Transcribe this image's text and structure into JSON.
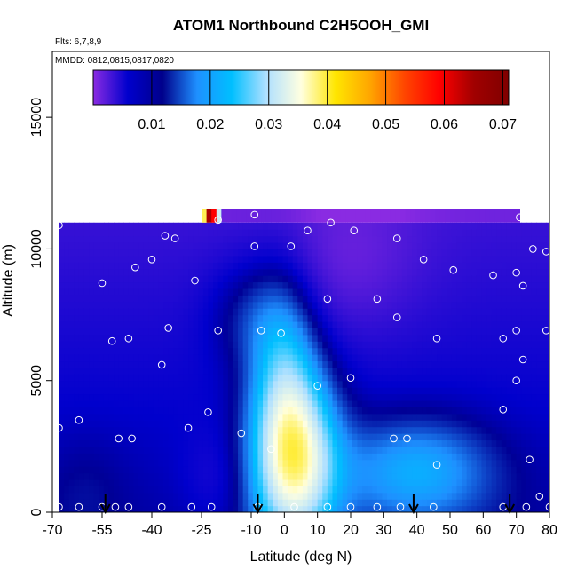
{
  "chart_data": {
    "type": "heatmap",
    "title": "ATOM1 Northbound C2H5OOH_GMI",
    "annotations": [
      "Flts: 6,7,8,9",
      "MMDD: 0812,0815,0817,0820"
    ],
    "xlabel": "Latitude (deg N)",
    "ylabel": "Altitude (m)",
    "xlim": [
      -70,
      80
    ],
    "ylim": [
      0,
      17500
    ],
    "x_ticks": [
      -70,
      -55,
      -40,
      -25,
      -10,
      0,
      10,
      20,
      30,
      40,
      50,
      60,
      70,
      80
    ],
    "x_tick_labels": [
      "-70",
      "-55",
      "-40",
      "-25",
      "-10",
      "0",
      "10",
      "20",
      "30",
      "40",
      "50",
      "60",
      "70",
      "80"
    ],
    "y_ticks": [
      0,
      5000,
      10000,
      15000
    ],
    "y_tick_labels": [
      "0",
      "5000",
      "10000",
      "15000"
    ],
    "colorbar": {
      "min": 0.0,
      "max": 0.071,
      "ticks": [
        0.01,
        0.02,
        0.03,
        0.04,
        0.05,
        0.06,
        0.07
      ],
      "tick_labels": [
        "0.01",
        "0.02",
        "0.03",
        "0.04",
        "0.05",
        "0.06",
        "0.07"
      ],
      "colors": [
        "#8a2be2",
        "#0000cd",
        "#00008b",
        "#1e90ff",
        "#00bfff",
        "#b0e0ff",
        "#ffffe0",
        "#ffe600",
        "#ffa500",
        "#ff4500",
        "#ff0000",
        "#a00000",
        "#800000"
      ]
    },
    "surface_arrows_lat": [
      -54,
      -8,
      39,
      68
    ],
    "sample_points": [
      {
        "lat": -68,
        "alt": 200
      },
      {
        "lat": -62,
        "alt": 200
      },
      {
        "lat": -55,
        "alt": 200
      },
      {
        "lat": -51,
        "alt": 200
      },
      {
        "lat": -47,
        "alt": 200
      },
      {
        "lat": -37,
        "alt": 200
      },
      {
        "lat": -28,
        "alt": 200
      },
      {
        "lat": -22,
        "alt": 200
      },
      {
        "lat": -8,
        "alt": 200
      },
      {
        "lat": 3,
        "alt": 200
      },
      {
        "lat": 13,
        "alt": 200
      },
      {
        "lat": 20,
        "alt": 200
      },
      {
        "lat": 28,
        "alt": 200
      },
      {
        "lat": 35,
        "alt": 200
      },
      {
        "lat": 45,
        "alt": 200
      },
      {
        "lat": 66,
        "alt": 200
      },
      {
        "lat": 73,
        "alt": 200
      },
      {
        "lat": 80,
        "alt": 200
      },
      {
        "lat": -68,
        "alt": 3200
      },
      {
        "lat": -62,
        "alt": 3500
      },
      {
        "lat": -50,
        "alt": 2800
      },
      {
        "lat": -46,
        "alt": 2800
      },
      {
        "lat": -29,
        "alt": 3200
      },
      {
        "lat": -13,
        "alt": 3000
      },
      {
        "lat": -4,
        "alt": 2400
      },
      {
        "lat": 33,
        "alt": 2800
      },
      {
        "lat": 37,
        "alt": 2800
      },
      {
        "lat": 46,
        "alt": 1800
      },
      {
        "lat": 74,
        "alt": 2000
      },
      {
        "lat": 77,
        "alt": 600
      },
      {
        "lat": -37,
        "alt": 5600
      },
      {
        "lat": -23,
        "alt": 3800
      },
      {
        "lat": 10,
        "alt": 4800
      },
      {
        "lat": 20,
        "alt": 5100
      },
      {
        "lat": 70,
        "alt": 5000
      },
      {
        "lat": 72,
        "alt": 5800
      },
      {
        "lat": 66,
        "alt": 3900
      },
      {
        "lat": -69,
        "alt": 7000
      },
      {
        "lat": -52,
        "alt": 6500
      },
      {
        "lat": -47,
        "alt": 6600
      },
      {
        "lat": -35,
        "alt": 7000
      },
      {
        "lat": -20,
        "alt": 6900
      },
      {
        "lat": -7,
        "alt": 6900
      },
      {
        "lat": -1,
        "alt": 6800
      },
      {
        "lat": 13,
        "alt": 8100
      },
      {
        "lat": 28,
        "alt": 8100
      },
      {
        "lat": 34,
        "alt": 7400
      },
      {
        "lat": 46,
        "alt": 6600
      },
      {
        "lat": 66,
        "alt": 6600
      },
      {
        "lat": 70,
        "alt": 6900
      },
      {
        "lat": 79,
        "alt": 6900
      },
      {
        "lat": -55,
        "alt": 8700
      },
      {
        "lat": -45,
        "alt": 9300
      },
      {
        "lat": -40,
        "alt": 9600
      },
      {
        "lat": -27,
        "alt": 8800
      },
      {
        "lat": -9,
        "alt": 10100
      },
      {
        "lat": 2,
        "alt": 10100
      },
      {
        "lat": 42,
        "alt": 9600
      },
      {
        "lat": 51,
        "alt": 9200
      },
      {
        "lat": 63,
        "alt": 9000
      },
      {
        "lat": 70,
        "alt": 9100
      },
      {
        "lat": 72,
        "alt": 8600
      },
      {
        "lat": 75,
        "alt": 10000
      },
      {
        "lat": 79,
        "alt": 9900
      },
      {
        "lat": -68,
        "alt": 10900
      },
      {
        "lat": -36,
        "alt": 10500
      },
      {
        "lat": -33,
        "alt": 10400
      },
      {
        "lat": -20,
        "alt": 11100
      },
      {
        "lat": -9,
        "alt": 11300
      },
      {
        "lat": 7,
        "alt": 10700
      },
      {
        "lat": 14,
        "alt": 11000
      },
      {
        "lat": 21,
        "alt": 10700
      },
      {
        "lat": 34,
        "alt": 10400
      },
      {
        "lat": 71,
        "alt": 11200
      }
    ]
  }
}
